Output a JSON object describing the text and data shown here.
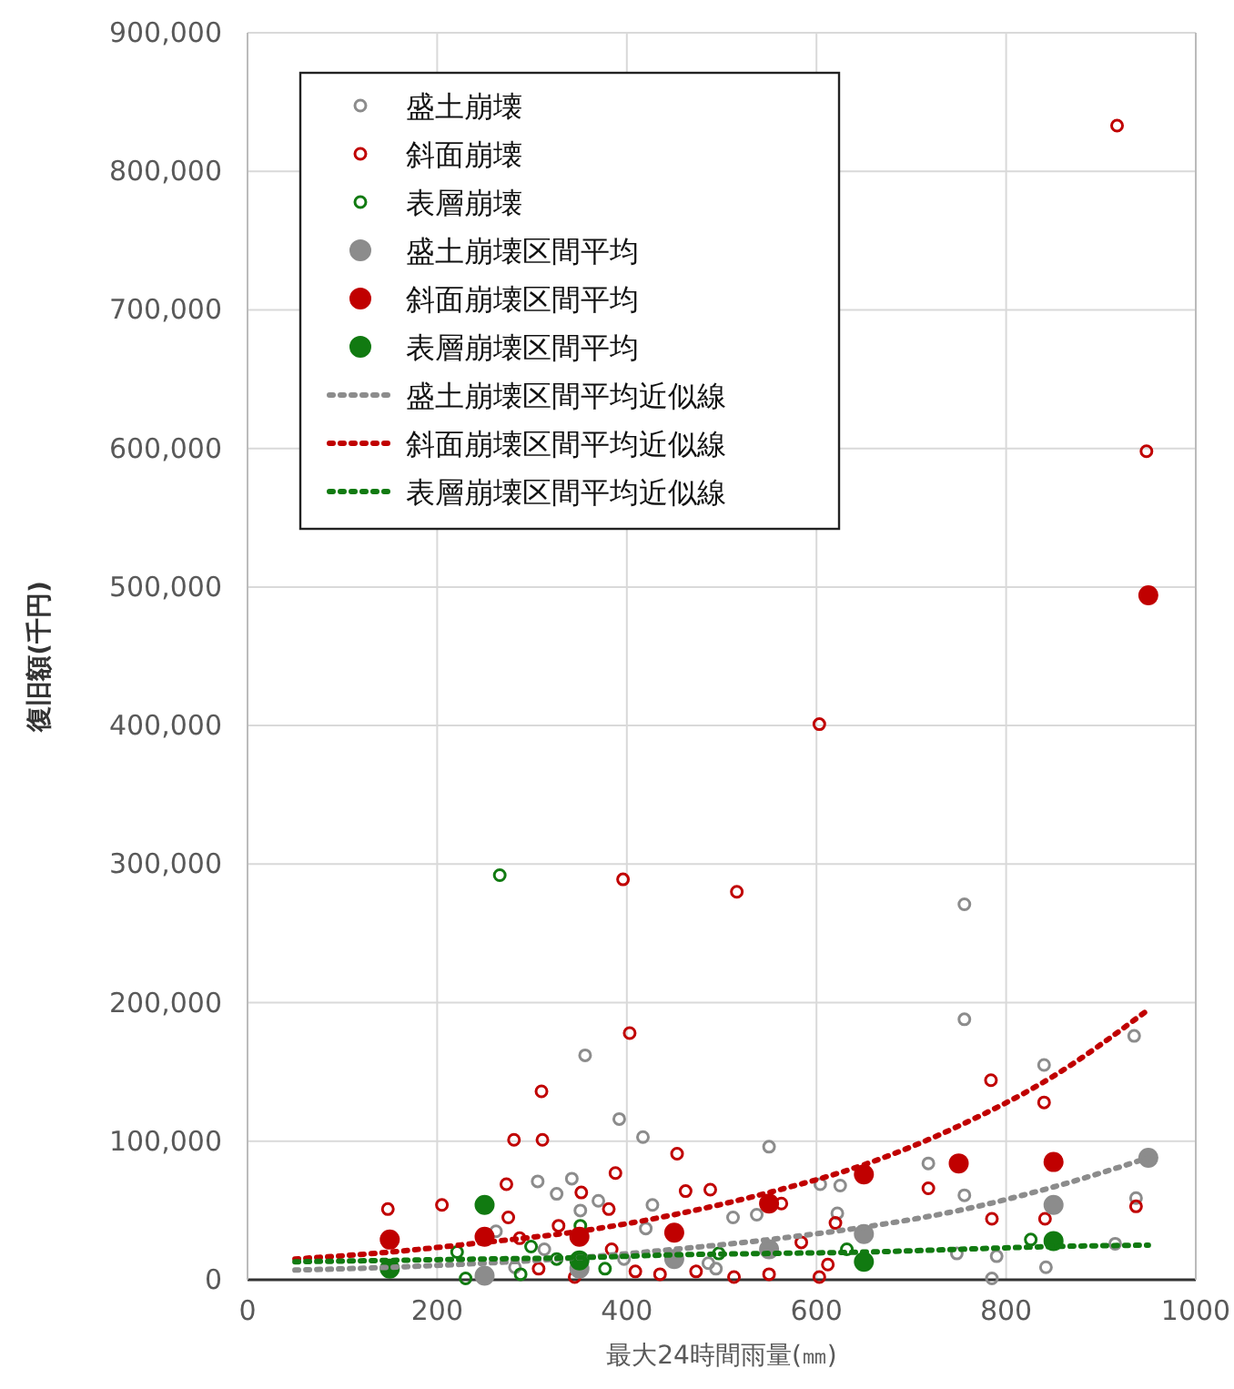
{
  "chart_data": {
    "type": "scatter",
    "xlabel": "最大24時間雨量(㎜)",
    "ylabel": "復旧額(千円)",
    "xlim": [
      0,
      1000
    ],
    "xticks": [
      0,
      200,
      400,
      600,
      800,
      1000
    ],
    "ylim": [
      0,
      900000
    ],
    "yticks": [
      {
        "value": 0,
        "label": "0"
      },
      {
        "value": 100000,
        "label": "100,000"
      },
      {
        "value": 200000,
        "label": "200,000"
      },
      {
        "value": 300000,
        "label": "300,000"
      },
      {
        "value": 400000,
        "label": "400,000"
      },
      {
        "value": 500000,
        "label": "500,000"
      },
      {
        "value": 600000,
        "label": "600,000"
      },
      {
        "value": 700000,
        "label": "700,000"
      },
      {
        "value": 800000,
        "label": "800,000"
      },
      {
        "value": 900000,
        "label": "900,000"
      }
    ],
    "grid": true,
    "legend": "top left",
    "series": [
      {
        "name": "盛土崩壊",
        "marker": "circle",
        "color": "#8c8c8c",
        "x": [
          356,
          392,
          417,
          306,
          342,
          326,
          370,
          427,
          351,
          420,
          262,
          313,
          397,
          282,
          486,
          756,
          935,
          840,
          550,
          718,
          756,
          604,
          625,
          512,
          537,
          622,
          937,
          915,
          748,
          790,
          842,
          785,
          494,
          756
        ],
        "values": [
          162000,
          116000,
          103000,
          71000,
          73000,
          62000,
          57000,
          54000,
          50000,
          37000,
          35000,
          22000,
          15000,
          9000,
          12000,
          188000,
          176000,
          155000,
          96000,
          84000,
          61000,
          69000,
          68000,
          45000,
          47000,
          48000,
          59000,
          26000,
          19000,
          17000,
          9000,
          1000,
          8000,
          271000
        ]
      },
      {
        "name": "斜面崩壊",
        "marker": "circle",
        "color": "#c00000",
        "x": [
          148,
          205,
          310,
          403,
          281,
          311,
          273,
          275,
          352,
          388,
          381,
          453,
          462,
          488,
          328,
          287,
          384,
          307,
          345,
          409,
          435,
          473,
          784,
          840,
          718,
          563,
          620,
          785,
          841,
          937,
          584,
          513,
          550,
          603,
          612,
          396,
          516,
          603,
          917,
          948
        ],
        "values": [
          51000,
          54000,
          136000,
          178000,
          101000,
          101000,
          69000,
          45000,
          63000,
          77000,
          51000,
          91000,
          64000,
          65000,
          39000,
          30000,
          22000,
          8000,
          2000,
          6000,
          4000,
          6000,
          144000,
          128000,
          66000,
          55000,
          41000,
          44000,
          44000,
          53000,
          27000,
          2000,
          4000,
          2000,
          11000,
          289000,
          280000,
          401000,
          833000,
          598000
        ]
      },
      {
        "name": "表層崩壊",
        "marker": "circle",
        "color": "#117a11",
        "x": [
          351,
          299,
          221,
          326,
          377,
          230,
          288,
          826,
          632,
          497,
          266
        ],
        "values": [
          39000,
          24000,
          20000,
          15000,
          8000,
          1000,
          4000,
          29000,
          22000,
          19000,
          292000
        ]
      },
      {
        "name": "盛土崩壊区間平均",
        "marker": "circle",
        "color": "#8c8c8c",
        "x": [
          250,
          350,
          450,
          550,
          650,
          850,
          950
        ],
        "values": [
          3000,
          8000,
          15000,
          22000,
          33000,
          54000,
          88000
        ]
      },
      {
        "name": "斜面崩壊区間平均",
        "marker": "circle",
        "color": "#c00000",
        "x": [
          150,
          250,
          350,
          450,
          550,
          650,
          750,
          850,
          950
        ],
        "values": [
          29000,
          31000,
          31000,
          34000,
          55000,
          76000,
          84000,
          85000,
          494000
        ]
      },
      {
        "name": "表層崩壊区間平均",
        "marker": "circle",
        "color": "#117a11",
        "x": [
          150,
          250,
          350,
          650,
          850
        ],
        "values": [
          8000,
          54000,
          14000,
          13000,
          28000
        ]
      },
      {
        "name": "盛土崩壊区間平均近似線",
        "type": "line",
        "line_style": "dotted",
        "marker": "none",
        "color": "#8c8c8c",
        "x": [
          50,
          150,
          250,
          350,
          450,
          550,
          650,
          750,
          850,
          950
        ],
        "values": [
          7000,
          9000,
          12000,
          16000,
          22000,
          29000,
          38000,
          50000,
          67000,
          88000
        ]
      },
      {
        "name": "斜面崩壊区間平均近似線",
        "type": "line",
        "line_style": "dotted",
        "marker": "none",
        "color": "#c00000",
        "x": [
          50,
          150,
          250,
          350,
          450,
          550,
          650,
          750,
          850,
          950
        ],
        "values": [
          15000,
          20000,
          27000,
          35000,
          47000,
          63000,
          83000,
          111000,
          147000,
          195000
        ]
      },
      {
        "name": "表層崩壊区間平均近似線",
        "type": "line",
        "line_style": "dotted",
        "marker": "none",
        "color": "#117a11",
        "x": [
          50,
          150,
          250,
          350,
          450,
          550,
          650,
          750,
          850,
          950
        ],
        "values": [
          13000,
          14000,
          15000,
          16000,
          18000,
          19000,
          20000,
          22000,
          24000,
          25000
        ]
      }
    ]
  }
}
